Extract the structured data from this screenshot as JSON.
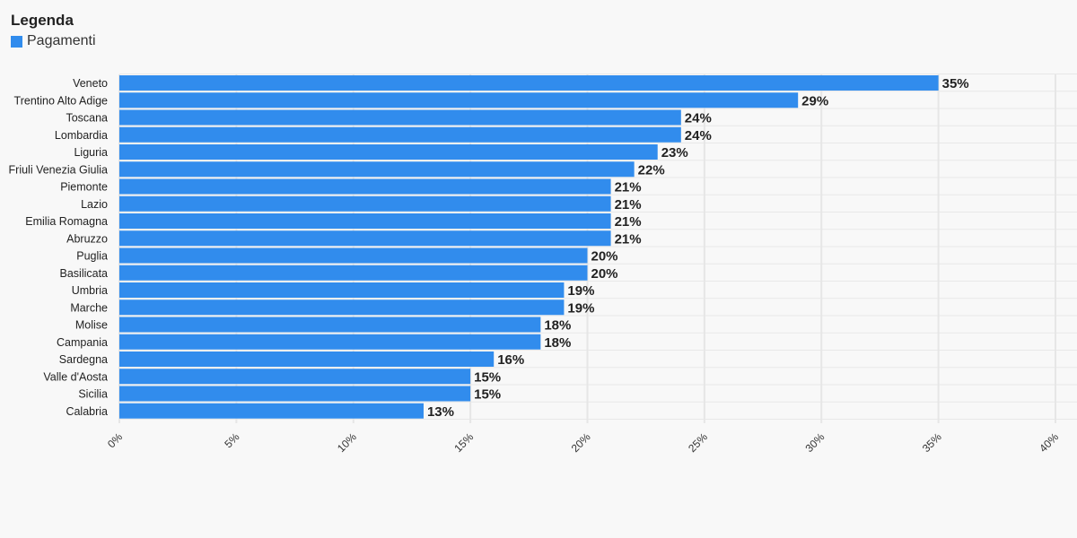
{
  "legend": {
    "title": "Legenda",
    "items": [
      {
        "label": "Pagamenti",
        "color": "#318ced"
      }
    ]
  },
  "chart_data": {
    "type": "bar",
    "orientation": "horizontal",
    "title": "",
    "xlabel": "",
    "ylabel": "",
    "xlim": [
      0,
      40
    ],
    "grid": true,
    "legend_position": "top-left",
    "bar_color": "#318ced",
    "value_suffix": "%",
    "x_ticks": [
      "0%",
      "5%",
      "10%",
      "15%",
      "20%",
      "25%",
      "30%",
      "35%",
      "40%"
    ],
    "categories": [
      "Veneto",
      "Trentino Alto Adige",
      "Toscana",
      "Lombardia",
      "Liguria",
      "Friuli Venezia Giulia",
      "Piemonte",
      "Lazio",
      "Emilia Romagna",
      "Abruzzo",
      "Puglia",
      "Basilicata",
      "Umbria",
      "Marche",
      "Molise",
      "Campania",
      "Sardegna",
      "Valle d'Aosta",
      "Sicilia",
      "Calabria"
    ],
    "series": [
      {
        "name": "Pagamenti",
        "values": [
          35,
          29,
          24,
          24,
          23,
          22,
          21,
          21,
          21,
          21,
          20,
          20,
          19,
          19,
          18,
          18,
          16,
          15,
          15,
          13
        ]
      }
    ]
  }
}
